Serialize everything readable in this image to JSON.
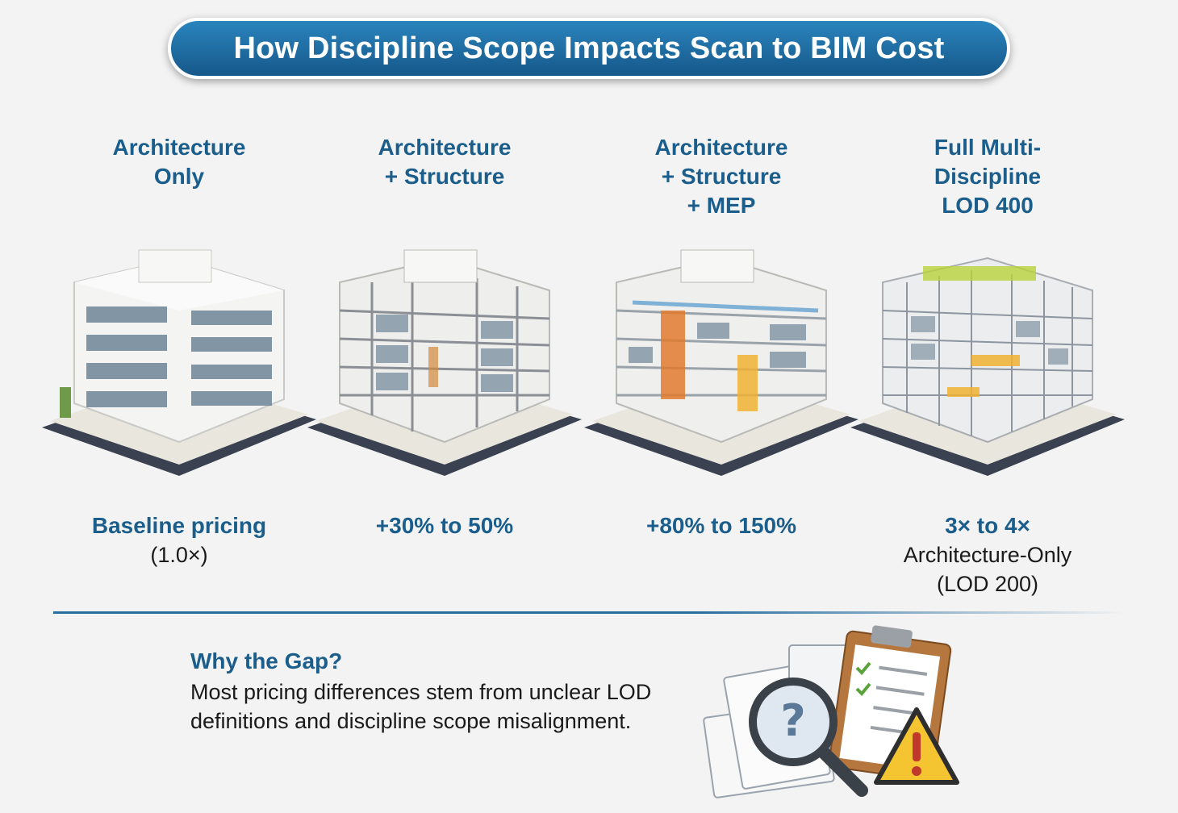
{
  "title": "How Discipline Scope Impacts Scan to BIM Cost",
  "tiers": [
    {
      "label": "Architecture\nOnly",
      "cost": "Baseline pricing",
      "note": "(1.0×)"
    },
    {
      "label": "Architecture\n+ Structure",
      "cost": "+30% to 50%",
      "note": ""
    },
    {
      "label": "Architecture\n+ Structure\n+ MEP",
      "cost": "+80% to 150%",
      "note": ""
    },
    {
      "label": "Full Multi-\nDiscipline\nLOD 400",
      "cost": "3× to 4×",
      "note": "Architecture-Only\n(LOD 200)"
    }
  ],
  "gap": {
    "title": "Why the Gap?",
    "body": "Most pricing differences stem from unclear LOD definitions and discipline scope misalignment."
  },
  "colors": {
    "accent": "#1b5e8c",
    "banner": "#2a84bd",
    "orange": "#e07a2e",
    "yellow": "#f0c233",
    "green": "#8fbf3a"
  },
  "icons": {
    "illustration": [
      "documents-icon",
      "clipboard-icon",
      "magnifier-question-icon",
      "warning-icon"
    ]
  }
}
